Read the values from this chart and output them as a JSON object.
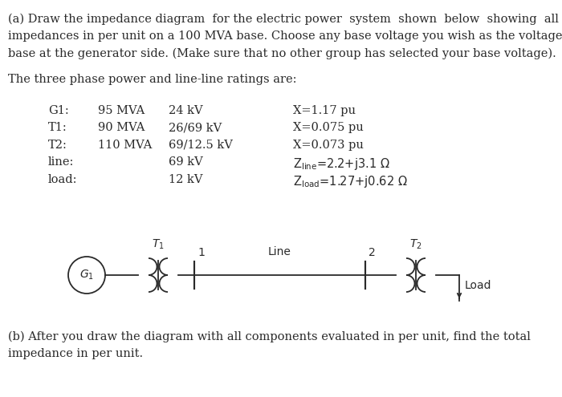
{
  "background_color": "#ffffff",
  "text_color": "#2a2a2a",
  "part_a_lines": [
    "(a) Draw the impedance diagram  for the electric power  system  shown  below  showing  all",
    "impedances in per unit on a 100 MVA base. Choose any base voltage you wish as the voltage",
    "base at the generator side. (Make sure that no other group has selected your base voltage)."
  ],
  "subtitle": "The three phase power and line-line ratings are:",
  "table_col1": [
    "G1:",
    "T1:",
    "T2:",
    "line:",
    "load:"
  ],
  "table_col2": [
    "95 MVA",
    "90 MVA",
    "110 MVA",
    "",
    ""
  ],
  "table_col3": [
    "24 kV",
    "26/69 kV",
    "69/12.5 kV",
    "69 kV",
    "12 kV"
  ],
  "table_col4_plain": [
    "X=1.17 pu",
    "X=0.075 pu",
    "X=0.073 pu",
    "",
    ""
  ],
  "table_col4_latex": [
    "",
    "",
    "",
    "Z$_{\\rm line}$=2.2+j3.1 $\\Omega$",
    "Z$_{\\rm load}$=1.27+j0.62 $\\Omega$"
  ],
  "diag_gen_label": "$G_1$",
  "diag_T1_label": "$T_1$",
  "diag_T2_label": "$T_2$",
  "diag_bus1": "1",
  "diag_bus2": "2",
  "diag_line": "Line",
  "diag_load": "Load",
  "part_b_lines": [
    "(b) After you draw the diagram with all components evaluated in per unit, find the total",
    "impedance in per unit."
  ],
  "fs_body": 10.5,
  "fs_diagram": 10,
  "lw": 1.3
}
